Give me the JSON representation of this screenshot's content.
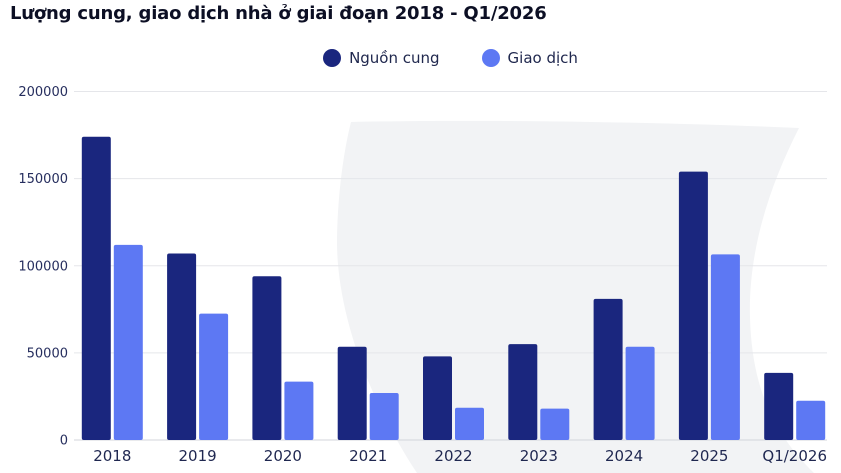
{
  "title": "Lượng cung, giao dịch nhà ở giai đoạn 2018 - Q1/2026",
  "legend": [
    {
      "label": "Nguồn cung",
      "color": "#1a267e"
    },
    {
      "label": "Giao dịch",
      "color": "#5d78f3"
    }
  ],
  "colors": {
    "supply_bar": "#1a267e",
    "transaction_bar": "#5d78f3",
    "title_text": "#0c0f24",
    "axis_text": "#262e5e",
    "gridline": "#e5e6ea",
    "baseline": "#d3d5db",
    "watermark": "#f2f3f5",
    "background": "#ffffff"
  },
  "chart_data": {
    "type": "bar",
    "title": "Lượng cung, giao dịch nhà ở giai đoạn 2018 - Q1/2026",
    "categories": [
      "2018",
      "2019",
      "2020",
      "2021",
      "2022",
      "2023",
      "2024",
      "2025",
      "Q1/2026"
    ],
    "series": [
      {
        "name": "Nguồn cung",
        "color": "#1a267e",
        "values": [
          174000,
          107000,
          94000,
          53500,
          48000,
          55000,
          81000,
          154000,
          38500
        ]
      },
      {
        "name": "Giao dịch",
        "color": "#5d78f3",
        "values": [
          112000,
          72500,
          33500,
          27000,
          18500,
          18000,
          53500,
          106500,
          22500
        ]
      }
    ],
    "xlabel": "",
    "ylabel": "",
    "ylim": [
      0,
      200000
    ],
    "yticks": [
      0,
      50000,
      100000,
      150000,
      200000
    ],
    "grid": true,
    "legend_position": "top-center"
  }
}
